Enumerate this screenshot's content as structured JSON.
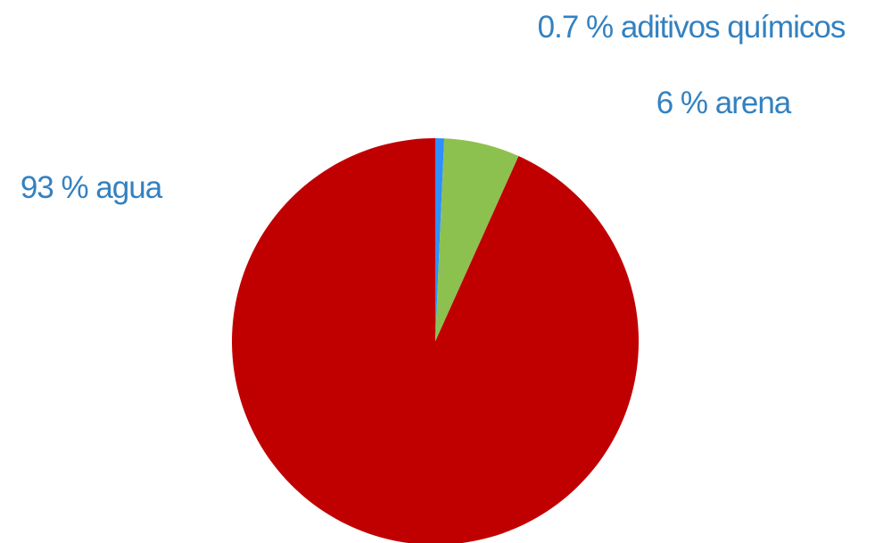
{
  "chart_data": {
    "type": "pie",
    "slices": [
      {
        "label": "0.7 % aditivos químicos",
        "value": 0.7,
        "color": "#2f8fff"
      },
      {
        "label": "6 % arena",
        "value": 6,
        "color": "#8dc14f"
      },
      {
        "label": "93 % agua",
        "value": 93,
        "color": "#c00000"
      }
    ],
    "label_color": "#3381c0",
    "start_angle_deg": 0,
    "direction": "clockwise"
  }
}
